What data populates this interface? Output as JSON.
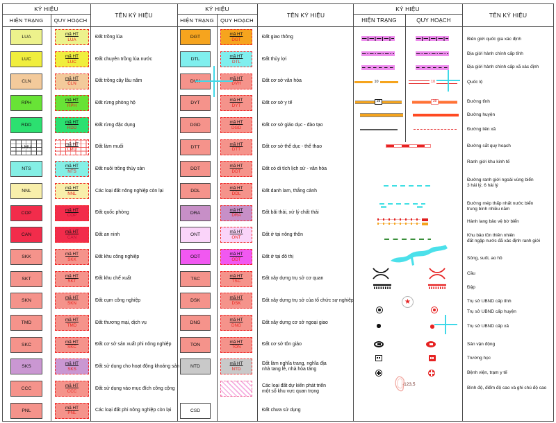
{
  "headers": {
    "ky_hieu": "KÝ HIỆU",
    "hien_trang": "HIỆN TRẠNG",
    "quy_hoach": "QUY HOẠCH",
    "ten_ky_hieu": "TÊN KÝ HIỆU"
  },
  "labels": {
    "qh_code_label": "mã HT"
  },
  "road_labels": {
    "national": "10",
    "province": "38"
  },
  "elevation_label": "·123,5",
  "colors": {
    "violet_band": "#ee8dee",
    "orange_road": "#f5a41d",
    "red": "#e63030",
    "cyan": "#3fdfe4",
    "green_boundary": "#3a8f3a",
    "salmon": "#f5938b",
    "crosshair": "#3fd8e8",
    "qh_dashed_border": "#ee2727"
  },
  "group1_rows": [
    {
      "code": "LUA",
      "name": "Đất trồng lúa",
      "fill": "#edf28c"
    },
    {
      "code": "LUC",
      "name": "Đất chuyên trồng lúa nước",
      "fill": "#f0ee3e"
    },
    {
      "code": "CLN",
      "name": "Đất trồng cây lâu năm",
      "fill": "#f3ca9b"
    },
    {
      "code": "RPH",
      "name": "Đất rừng phòng hộ",
      "fill": "#68e336"
    },
    {
      "code": "RDD",
      "name": "Đất rừng đặc dụng",
      "fill": "#2ce070"
    },
    {
      "code": "LMU",
      "name": "Đất làm muối",
      "fill": "#ffffff",
      "pattern": "grid"
    },
    {
      "code": "NTS",
      "name": "Đất nuôi trồng thủy sản",
      "fill": "#84efe5"
    },
    {
      "code": "NNL",
      "name": "Các loại đất nông nghiệp còn lại",
      "fill": "#f8efab"
    },
    {
      "code": "COP",
      "name": "Đất quốc phòng",
      "fill": "#f22c4b",
      "code_color": "#b80f34"
    },
    {
      "code": "CAN",
      "name": "Đất an ninh",
      "fill": "#f22c4b",
      "code_color": "#b80f34"
    },
    {
      "code": "SKK",
      "name": "Đất khu công nghiệp",
      "fill": "#f5938b"
    },
    {
      "code": "SKT",
      "name": "Đất khu chế xuất",
      "fill": "#f5938b"
    },
    {
      "code": "SKN",
      "name": "Đất cụm công nghiệp",
      "fill": "#f5938b"
    },
    {
      "code": "TMD",
      "name": "Đất thương mại, dịch vụ",
      "fill": "#f5938b"
    },
    {
      "code": "SKC",
      "name": "Đất cơ sở sản xuất phi nông nghiệp",
      "fill": "#f5938b"
    },
    {
      "code": "SKS",
      "name": "Đất sử dụng cho hoạt động khoáng sản",
      "fill": "#ca97d2"
    },
    {
      "code": "CCC",
      "name": "Đất sử dụng vào mục đích công cộng",
      "fill": "#f5938b"
    },
    {
      "code": "PNL",
      "name": "Các loại đất phi nông nghiệp còn lại",
      "fill": "#f5938b"
    }
  ],
  "group2_rows": [
    {
      "code": "DGT",
      "name": "Đất giao thông",
      "fill": "#f6a41e"
    },
    {
      "code": "DTL",
      "name": "Đất thủy lợi",
      "fill": "#80efee"
    },
    {
      "code": "DVH",
      "name": "Đất cơ sở văn hóa",
      "fill": "#f5938b"
    },
    {
      "code": "DYT",
      "name": "Đất cơ sở y tế",
      "fill": "#f5938b"
    },
    {
      "code": "DGD",
      "name": "Đất cơ sở giáo dục - đào tạo",
      "fill": "#f5938b"
    },
    {
      "code": "DTT",
      "name": "Đất cơ sở thể dục - thể thao",
      "fill": "#f5938b"
    },
    {
      "code": "DDT",
      "name": "Đất có di tích lịch sử - văn hóa",
      "fill": "#f5938b"
    },
    {
      "code": "DDL",
      "name": "Đất danh lam, thắng cảnh",
      "fill": "#f5938b"
    },
    {
      "code": "DRA",
      "name": "Đất bãi thải, xử lý chất thải",
      "fill": "#c78fc7"
    },
    {
      "code": "ONT",
      "name": "Đất ở tại nông thôn",
      "fill": "#fad4f9"
    },
    {
      "code": "ODT",
      "name": "Đất ở tại đô thị",
      "fill": "#f158f1"
    },
    {
      "code": "TSC",
      "name": "Đất xây dựng trụ sở cơ quan",
      "fill": "#f5938b"
    },
    {
      "code": "DSK",
      "name": "Đất xây dựng trụ sở của tổ chức sự nghiệp",
      "fill": "#f5938b"
    },
    {
      "code": "DNG",
      "name": "Đất xây dựng cơ sở ngoại giao",
      "fill": "#f5938b"
    },
    {
      "code": "TON",
      "name": "Đất cơ sở tôn giáo",
      "fill": "#f5938b"
    },
    {
      "code": "NTD",
      "name": "Đất làm nghĩa trang, nghĩa địa",
      "name2": "nhà tang lễ, nhà hỏa táng",
      "fill": "#c9c9c9"
    },
    {
      "name": "Các loại đất dự kiến phát triển",
      "name2": "một số khu vực quan trọng",
      "fill": "#f5aee0",
      "qh_only": true
    },
    {
      "code": "CSD",
      "name": "Đất chưa sử dụng",
      "fill": "#ffffff",
      "ht_only": true
    }
  ],
  "group3_rows": [
    {
      "sym": "band_cross",
      "name": "Biên giới quốc gia xác định"
    },
    {
      "sym": "band_dashdot",
      "name": "Địa giới hành chính cấp tỉnh"
    },
    {
      "sym": "band_dash",
      "name": "Địa giới hành chính cấp xã xác định"
    },
    {
      "sym": "road_national",
      "name": "Quốc lộ"
    },
    {
      "sym": "road_province",
      "name": "Đường tỉnh"
    },
    {
      "sym": "road_district",
      "name": "Đường huyện"
    },
    {
      "sym": "road_commune",
      "name": "Đường liên xã"
    },
    {
      "sym": "railway",
      "name": "Đường sắt quy hoạch"
    },
    {
      "sym": "none",
      "name": "Ranh giới khu kinh tế"
    },
    {
      "sym": "sea_dash",
      "name": "Đường ranh giới ngoài vùng biển",
      "name2": "3 hải lý, 6 hải lý"
    },
    {
      "sym": "sea_dash_labeled",
      "name": "Đường mép thấp nhất nước biển",
      "name2": "trung bình nhiều năm"
    },
    {
      "sym": "corridor",
      "name": "Hành lang bảo vệ bờ biển"
    },
    {
      "sym": "green_dash",
      "name": "Khu bảo tồn thiên nhiên",
      "name2": "đất ngập nước đã xác định ranh giới"
    },
    {
      "sym": "river",
      "name": "Sông, suối, ao hồ"
    },
    {
      "sym": "bridge",
      "name": "Cầu"
    },
    {
      "sym": "dam",
      "name": "Đập"
    },
    {
      "sym": "star",
      "name": "Trụ sở UBND cấp tỉnh"
    },
    {
      "sym": "ring",
      "name": "Trụ sở UBND cấp huyện"
    },
    {
      "sym": "dot",
      "name": "Trụ sở UBND cấp xã"
    },
    {
      "sym": "stadium",
      "name": "Sân vận động"
    },
    {
      "sym": "school",
      "name": "Trường học"
    },
    {
      "sym": "hospital",
      "name": "Bệnh viện, trạm y tế"
    },
    {
      "sym": "contour",
      "name": "Bình độ, điểm độ cao và ghi chú độ cao"
    }
  ]
}
